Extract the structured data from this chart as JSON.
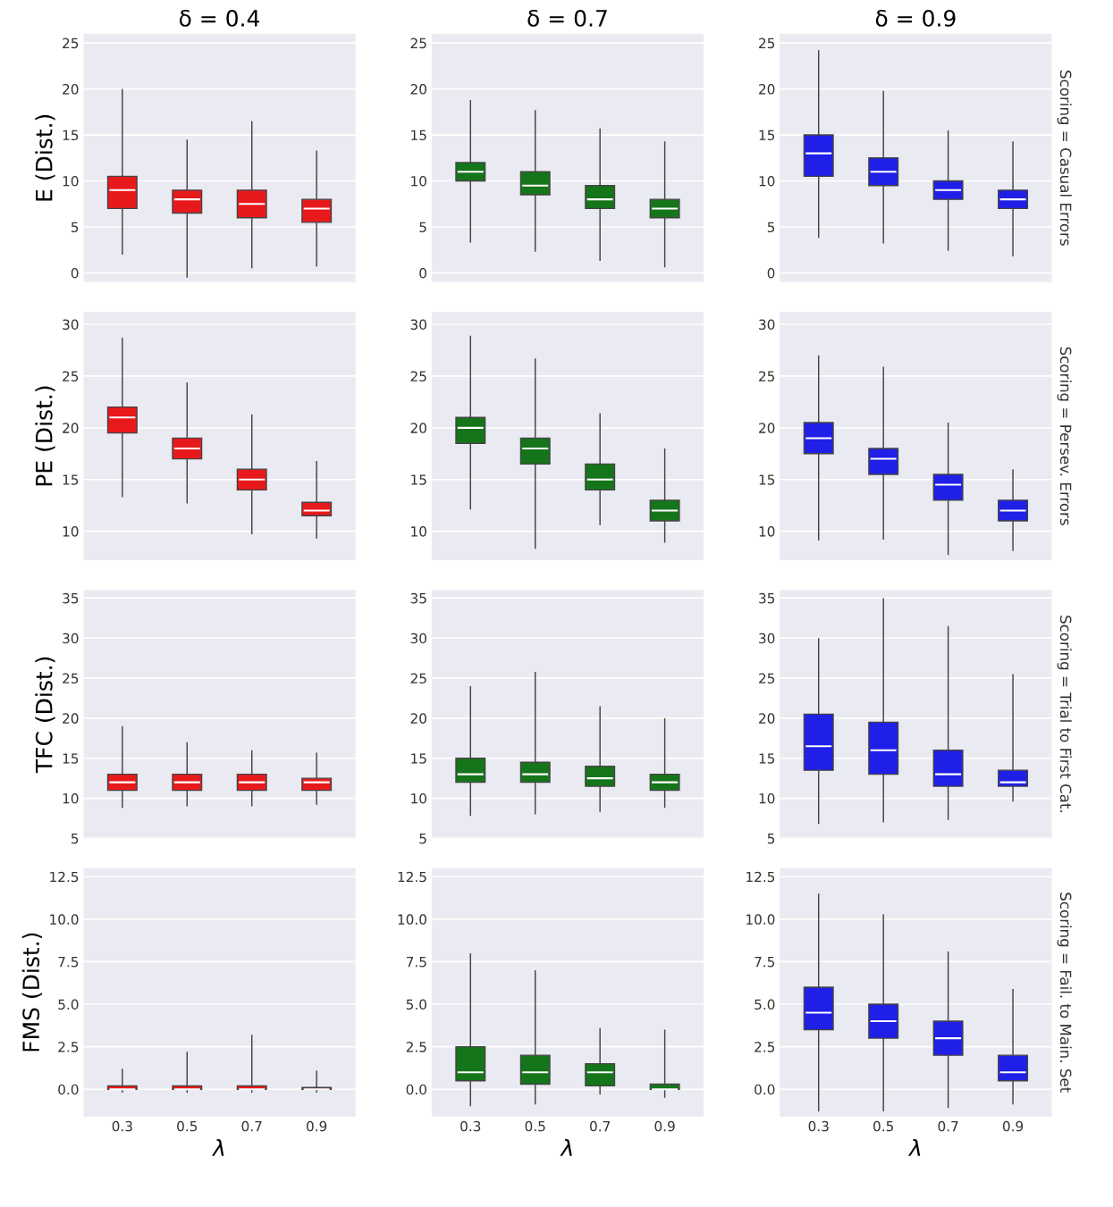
{
  "chart_data": [
    {
      "type": "box",
      "title": "δ = 0.4",
      "ylabel": "E (Dist.)",
      "categories": [
        "0.3",
        "0.5",
        "0.7",
        "0.9"
      ],
      "ylim": [
        -1,
        26
      ],
      "yticks": [
        0,
        5,
        10,
        15,
        20,
        25
      ],
      "grid": "y",
      "tick_labels": "y",
      "series": [
        {
          "color": "#e8191b",
          "boxes": [
            {
              "low": 2,
              "q1": 7,
              "median": 9,
              "q3": 10.5,
              "high": 20
            },
            {
              "low": -0.5,
              "q1": 6.5,
              "median": 8,
              "q3": 9,
              "high": 14.5
            },
            {
              "low": 0.5,
              "q1": 6,
              "median": 7.5,
              "q3": 9,
              "high": 16.5
            },
            {
              "low": 0.7,
              "q1": 5.5,
              "median": 7,
              "q3": 8,
              "high": 13.3
            }
          ]
        }
      ]
    },
    {
      "type": "box",
      "title": "δ = 0.7",
      "categories": [
        "0.3",
        "0.5",
        "0.7",
        "0.9"
      ],
      "ylim": [
        -1,
        26
      ],
      "yticks": [
        0,
        5,
        10,
        15,
        20,
        25
      ],
      "grid": "y",
      "tick_labels": "y",
      "series": [
        {
          "color": "#14751a",
          "boxes": [
            {
              "low": 3.3,
              "q1": 10,
              "median": 11,
              "q3": 12,
              "high": 18.8
            },
            {
              "low": 2.3,
              "q1": 8.5,
              "median": 9.5,
              "q3": 11,
              "high": 17.7
            },
            {
              "low": 1.3,
              "q1": 7,
              "median": 8,
              "q3": 9.5,
              "high": 15.7
            },
            {
              "low": 0.6,
              "q1": 6,
              "median": 7,
              "q3": 8,
              "high": 14.3
            }
          ]
        }
      ]
    },
    {
      "type": "box",
      "title": "δ = 0.9",
      "annotations": [
        "Scoring = Casual Errors"
      ],
      "categories": [
        "0.3",
        "0.5",
        "0.7",
        "0.9"
      ],
      "ylim": [
        -1,
        26
      ],
      "yticks": [
        0,
        5,
        10,
        15,
        20,
        25
      ],
      "grid": "y",
      "tick_labels": "y",
      "series": [
        {
          "color": "#1f1fe8",
          "boxes": [
            {
              "low": 3.8,
              "q1": 10.5,
              "median": 13,
              "q3": 15,
              "high": 24.2
            },
            {
              "low": 3.2,
              "q1": 9.5,
              "median": 11,
              "q3": 12.5,
              "high": 19.8
            },
            {
              "low": 2.4,
              "q1": 8,
              "median": 9,
              "q3": 10,
              "high": 15.5
            },
            {
              "low": 1.8,
              "q1": 7,
              "median": 8,
              "q3": 9,
              "high": 14.3
            }
          ]
        }
      ]
    },
    {
      "type": "box",
      "ylabel": "PE (Dist.)",
      "categories": [
        "0.3",
        "0.5",
        "0.7",
        "0.9"
      ],
      "ylim": [
        7.2,
        31.2
      ],
      "yticks": [
        10,
        15,
        20,
        25,
        30
      ],
      "grid": "y",
      "tick_labels": "y",
      "series": [
        {
          "color": "#e8191b",
          "boxes": [
            {
              "low": 13.3,
              "q1": 19.5,
              "median": 21,
              "q3": 22,
              "high": 28.7
            },
            {
              "low": 12.7,
              "q1": 17,
              "median": 18,
              "q3": 19,
              "high": 24.4
            },
            {
              "low": 9.7,
              "q1": 14,
              "median": 15,
              "q3": 16,
              "high": 21.3
            },
            {
              "low": 9.3,
              "q1": 11.5,
              "median": 12,
              "q3": 12.8,
              "high": 16.8
            }
          ]
        }
      ]
    },
    {
      "type": "box",
      "categories": [
        "0.3",
        "0.5",
        "0.7",
        "0.9"
      ],
      "ylim": [
        7.2,
        31.2
      ],
      "yticks": [
        10,
        15,
        20,
        25,
        30
      ],
      "grid": "y",
      "tick_labels": "y",
      "series": [
        {
          "color": "#14751a",
          "boxes": [
            {
              "low": 12.1,
              "q1": 18.5,
              "median": 20,
              "q3": 21,
              "high": 28.9
            },
            {
              "low": 8.3,
              "q1": 16.5,
              "median": 18,
              "q3": 19,
              "high": 26.7
            },
            {
              "low": 10.6,
              "q1": 14,
              "median": 15,
              "q3": 16.5,
              "high": 21.4
            },
            {
              "low": 8.9,
              "q1": 11,
              "median": 12,
              "q3": 13,
              "high": 18
            }
          ]
        }
      ]
    },
    {
      "type": "box",
      "annotations": [
        "Scoring = Persev. Errors"
      ],
      "categories": [
        "0.3",
        "0.5",
        "0.7",
        "0.9"
      ],
      "ylim": [
        7.2,
        31.2
      ],
      "yticks": [
        10,
        15,
        20,
        25,
        30
      ],
      "grid": "y",
      "tick_labels": "y",
      "series": [
        {
          "color": "#1f1fe8",
          "boxes": [
            {
              "low": 9.1,
              "q1": 17.5,
              "median": 19,
              "q3": 20.5,
              "high": 27
            },
            {
              "low": 9.2,
              "q1": 15.5,
              "median": 17,
              "q3": 18,
              "high": 25.9
            },
            {
              "low": 7.7,
              "q1": 13,
              "median": 14.5,
              "q3": 15.5,
              "high": 20.5
            },
            {
              "low": 8.1,
              "q1": 11,
              "median": 12,
              "q3": 13,
              "high": 16
            }
          ]
        }
      ]
    },
    {
      "type": "box",
      "ylabel": "TFC (Dist.)",
      "categories": [
        "0.3",
        "0.5",
        "0.7",
        "0.9"
      ],
      "ylim": [
        5,
        36
      ],
      "yticks": [
        5,
        10,
        15,
        20,
        25,
        30,
        35
      ],
      "grid": "y",
      "tick_labels": "y",
      "series": [
        {
          "color": "#e8191b",
          "boxes": [
            {
              "low": 8.8,
              "q1": 11,
              "median": 12,
              "q3": 13,
              "high": 19
            },
            {
              "low": 9,
              "q1": 11,
              "median": 12,
              "q3": 13,
              "high": 17
            },
            {
              "low": 9,
              "q1": 11,
              "median": 12,
              "q3": 13,
              "high": 16
            },
            {
              "low": 9.2,
              "q1": 11,
              "median": 12,
              "q3": 12.5,
              "high": 15.7
            }
          ]
        }
      ]
    },
    {
      "type": "box",
      "categories": [
        "0.3",
        "0.5",
        "0.7",
        "0.9"
      ],
      "ylim": [
        5,
        36
      ],
      "yticks": [
        5,
        10,
        15,
        20,
        25,
        30,
        35
      ],
      "grid": "y",
      "tick_labels": "y",
      "series": [
        {
          "color": "#14751a",
          "boxes": [
            {
              "low": 7.8,
              "q1": 12,
              "median": 13,
              "q3": 15,
              "high": 24
            },
            {
              "low": 8,
              "q1": 12,
              "median": 13,
              "q3": 14.5,
              "high": 25.8
            },
            {
              "low": 8.3,
              "q1": 11.5,
              "median": 12.5,
              "q3": 14,
              "high": 21.5
            },
            {
              "low": 8.8,
              "q1": 11,
              "median": 12,
              "q3": 13,
              "high": 20
            }
          ]
        }
      ]
    },
    {
      "type": "box",
      "annotations": [
        "Scoring = Trial to First Cat."
      ],
      "categories": [
        "0.3",
        "0.5",
        "0.7",
        "0.9"
      ],
      "ylim": [
        5,
        36
      ],
      "yticks": [
        5,
        10,
        15,
        20,
        25,
        30,
        35
      ],
      "grid": "y",
      "tick_labels": "y",
      "series": [
        {
          "color": "#1f1fe8",
          "boxes": [
            {
              "low": 6.8,
              "q1": 13.5,
              "median": 16.5,
              "q3": 20.5,
              "high": 30
            },
            {
              "low": 7,
              "q1": 13,
              "median": 16,
              "q3": 19.5,
              "high": 35
            },
            {
              "low": 7.3,
              "q1": 11.5,
              "median": 13,
              "q3": 16,
              "high": 31.5
            },
            {
              "low": 9.6,
              "q1": 11.5,
              "median": 12,
              "q3": 13.5,
              "high": 25.5
            }
          ]
        }
      ]
    },
    {
      "type": "box",
      "ylabel": "FMS (Dist.)",
      "xlabel": "λ",
      "categories": [
        "0.3",
        "0.5",
        "0.7",
        "0.9"
      ],
      "ylim": [
        -1.6,
        13
      ],
      "yticks": [
        {
          "value": 0,
          "label": "0.0"
        },
        2.5,
        {
          "value": 5,
          "label": "5.0"
        },
        7.5,
        {
          "value": 10,
          "label": "10.0"
        },
        12.5
      ],
      "grid": "y",
      "series": [
        {
          "color": "#e8191b",
          "boxes": [
            {
              "low": -0.2,
              "q1": 0,
              "median": 0,
              "q3": 0.2,
              "high": 1.2
            },
            {
              "low": -0.2,
              "q1": 0,
              "median": 0,
              "q3": 0.2,
              "high": 2.2
            },
            {
              "low": -0.2,
              "q1": 0,
              "median": 0,
              "q3": 0.2,
              "high": 3.2
            },
            {
              "low": -0.2,
              "q1": 0,
              "median": 0,
              "q3": 0.1,
              "high": 1.1
            }
          ]
        }
      ]
    },
    {
      "type": "box",
      "xlabel": "λ",
      "categories": [
        "0.3",
        "0.5",
        "0.7",
        "0.9"
      ],
      "ylim": [
        -1.6,
        13
      ],
      "yticks": [
        {
          "value": 0,
          "label": "0.0"
        },
        2.5,
        {
          "value": 5,
          "label": "5.0"
        },
        7.5,
        {
          "value": 10,
          "label": "10.0"
        },
        12.5
      ],
      "grid": "y",
      "series": [
        {
          "color": "#14751a",
          "boxes": [
            {
              "low": -1,
              "q1": 0.5,
              "median": 1,
              "q3": 2.5,
              "high": 8
            },
            {
              "low": -0.9,
              "q1": 0.3,
              "median": 1,
              "q3": 2,
              "high": 7
            },
            {
              "low": -0.3,
              "q1": 0.2,
              "median": 1,
              "q3": 1.5,
              "high": 3.6
            },
            {
              "low": -0.5,
              "q1": 0,
              "median": 0,
              "q3": 0.3,
              "high": 3.5
            }
          ]
        }
      ]
    },
    {
      "type": "box",
      "xlabel": "λ",
      "annotations": [
        "Scoring = Fail. to Main. Set"
      ],
      "categories": [
        "0.3",
        "0.5",
        "0.7",
        "0.9"
      ],
      "ylim": [
        -1.6,
        13
      ],
      "yticks": [
        {
          "value": 0,
          "label": "0.0"
        },
        2.5,
        {
          "value": 5,
          "label": "5.0"
        },
        7.5,
        {
          "value": 10,
          "label": "10.0"
        },
        12.5
      ],
      "grid": "y",
      "series": [
        {
          "color": "#1f1fe8",
          "boxes": [
            {
              "low": -1.3,
              "q1": 3.5,
              "median": 4.5,
              "q3": 6,
              "high": 11.5
            },
            {
              "low": -1.3,
              "q1": 3,
              "median": 4,
              "q3": 5,
              "high": 10.3
            },
            {
              "low": -1.1,
              "q1": 2,
              "median": 3,
              "q3": 4,
              "high": 8.1
            },
            {
              "low": -0.9,
              "q1": 0.5,
              "median": 1,
              "q3": 2,
              "high": 5.9
            }
          ]
        }
      ]
    }
  ]
}
